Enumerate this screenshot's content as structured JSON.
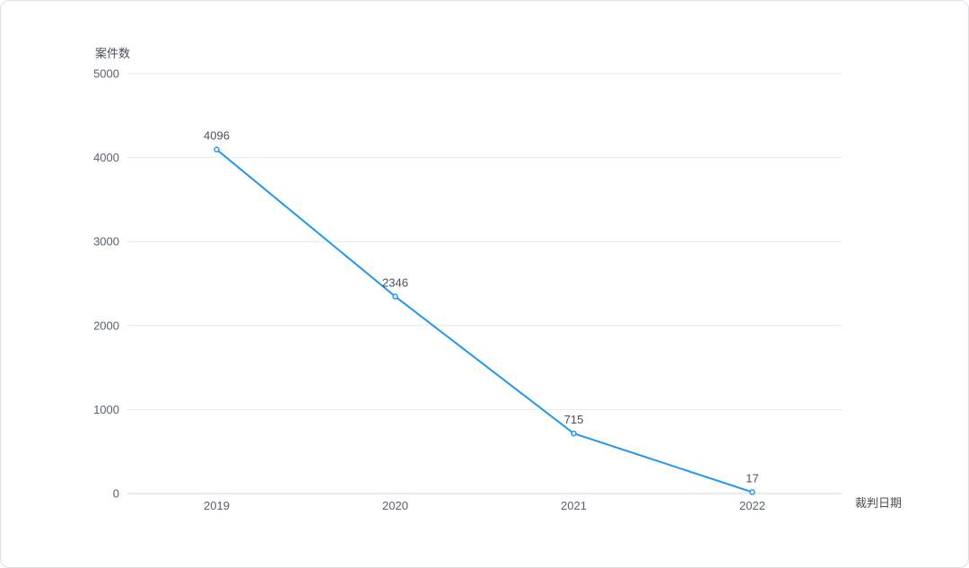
{
  "chart_data": {
    "type": "line",
    "xlabel": "裁判日期",
    "ylabel": "案件数",
    "categories": [
      "2019",
      "2020",
      "2021",
      "2022"
    ],
    "values": [
      4096,
      2346,
      715,
      17
    ],
    "ylim": [
      0,
      5000
    ],
    "yticks": [
      "0",
      "1000",
      "2000",
      "3000",
      "4000",
      "5000"
    ],
    "ytick_values": [
      0,
      1000,
      2000,
      3000,
      4000,
      5000
    ],
    "data_labels": [
      "4096",
      "2346",
      "715",
      "17"
    ],
    "grid": true,
    "legend": "none",
    "line_color": "#2196f3"
  }
}
